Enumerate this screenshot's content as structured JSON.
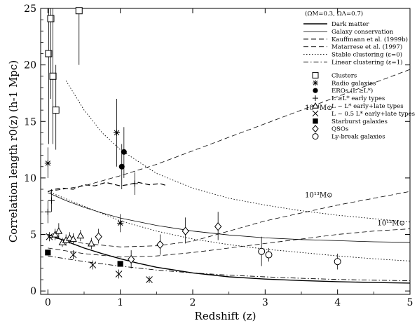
{
  "chart_data": {
    "type": "scatter",
    "xlabel": "Redshift (z)",
    "ylabel": "Correlation length r0(z) (h-1 Mpc)",
    "xlim": [
      -0.1,
      5
    ],
    "ylim": [
      -0.3,
      25
    ],
    "xticks": [
      "0",
      "1",
      "2",
      "3",
      "4",
      "5"
    ],
    "yticks": [
      "0",
      "5",
      "10",
      "15",
      "20",
      "25"
    ],
    "legend_header": "(ΩM=0.3, ΩΛ=0.7)",
    "legend_placement": "top-right",
    "line_series": [
      {
        "name": "Dark matter",
        "style": "solid",
        "width": 1.4,
        "x": [
          0,
          0.25,
          0.5,
          0.75,
          1,
          1.25,
          1.5,
          2,
          2.5,
          3,
          3.5,
          4,
          4.5,
          5
        ],
        "y": [
          5.0,
          4.4,
          3.8,
          3.3,
          2.85,
          2.45,
          2.1,
          1.6,
          1.25,
          1.05,
          0.92,
          0.82,
          0.75,
          0.7
        ]
      },
      {
        "name": "Galaxy conservation",
        "style": "solid",
        "width": 0.8,
        "x": [
          0,
          0.25,
          0.5,
          0.75,
          1,
          1.5,
          2,
          2.5,
          3,
          3.5,
          4,
          4.5,
          5
        ],
        "y": [
          8.7,
          8.0,
          7.4,
          6.9,
          6.45,
          5.8,
          5.3,
          4.95,
          4.7,
          4.55,
          4.45,
          4.35,
          4.3
        ]
      },
      {
        "name": "Kauffmann et al. (1999b)",
        "style": "dashed",
        "width": 1.2,
        "x": [
          0,
          0.1,
          0.2,
          0.35,
          0.5,
          0.65,
          0.8,
          1.0,
          1.1,
          1.25,
          1.4,
          1.55,
          1.65
        ],
        "y": [
          8.8,
          9.0,
          9.1,
          9.0,
          9.4,
          9.3,
          9.6,
          9.3,
          9.4,
          9.6,
          9.4,
          9.5,
          9.3
        ]
      },
      {
        "name": "Matarrese et al. (1997)",
        "style": "dashed",
        "width": 0.8,
        "x": [
          0,
          0.5,
          1,
          1.5,
          2,
          2.5,
          3,
          3.5,
          4,
          4.5,
          5
        ],
        "y": [
          8.8,
          9.3,
          10.2,
          11.2,
          12.4,
          13.6,
          14.8,
          16.0,
          17.2,
          18.4,
          19.6
        ]
      },
      {
        "name": "Matarrese et al. (1997)",
        "style": "dashed",
        "width": 0.8,
        "x": [
          0,
          0.5,
          1,
          1.5,
          2,
          2.5,
          3,
          3.5,
          4,
          4.5,
          5
        ],
        "y": [
          4.8,
          4.2,
          3.9,
          4.0,
          4.4,
          5.3,
          6.2,
          6.9,
          7.6,
          8.2,
          8.8
        ]
      },
      {
        "name": "Matarrese et al. (1997)",
        "style": "dashed",
        "width": 0.8,
        "x": [
          0,
          0.5,
          1,
          1.5,
          2,
          2.5,
          3,
          3.5,
          4,
          4.5,
          5
        ],
        "y": [
          3.8,
          3.3,
          3.0,
          3.1,
          3.4,
          3.8,
          4.2,
          4.6,
          5.0,
          5.3,
          5.5
        ]
      },
      {
        "name": "Stable clustering (ε=0)",
        "style": "dotted",
        "width": 0.9,
        "x": [
          0.25,
          0.5,
          0.75,
          1,
          1.5,
          2,
          2.5,
          3,
          3.5,
          4,
          4.5,
          5
        ],
        "y": [
          18.6,
          16.0,
          14.0,
          12.5,
          10.4,
          9.1,
          8.2,
          7.6,
          7.1,
          6.7,
          6.4,
          6.1
        ]
      },
      {
        "name": "Stable clustering (ε=0)",
        "style": "dotted",
        "width": 0.9,
        "x": [
          0,
          0.5,
          1,
          1.5,
          2,
          2.5,
          3,
          3.5,
          4,
          4.5,
          5
        ],
        "y": [
          8.8,
          7.5,
          6.2,
          5.3,
          4.6,
          4.1,
          3.7,
          3.4,
          3.1,
          2.85,
          2.65
        ]
      },
      {
        "name": "Linear clustering (ε=1)",
        "style": "dashdot",
        "width": 0.9,
        "x": [
          0,
          0.5,
          1,
          1.5,
          2,
          2.5,
          3,
          3.5,
          4,
          4.5,
          5
        ],
        "y": [
          3.1,
          2.6,
          2.2,
          1.85,
          1.6,
          1.4,
          1.25,
          1.12,
          1.02,
          0.95,
          0.9
        ]
      }
    ],
    "point_series": [
      {
        "name": "Clusters",
        "marker": "square-open",
        "points": [
          {
            "x": 0.01,
            "y": 21.0,
            "ylo": 13.0,
            "yhi": 27.0
          },
          {
            "x": 0.04,
            "y": 24.1,
            "ylo": 17.0,
            "yhi": 27.0
          },
          {
            "x": 0.07,
            "y": 19.0,
            "ylo": 13.0,
            "yhi": 25.0
          },
          {
            "x": 0.11,
            "y": 16.0,
            "ylo": 12.5,
            "yhi": 20.0
          },
          {
            "x": 0.43,
            "y": 24.8,
            "ylo": 20.0,
            "yhi": 27.0
          }
        ]
      },
      {
        "name": "Radio galaxies",
        "marker": "asterisk",
        "points": [
          {
            "x": 0.0,
            "y": 11.3,
            "ylo": 10.0,
            "yhi": 12.7
          },
          {
            "x": 0.95,
            "y": 14.0,
            "ylo": 11.0,
            "yhi": 17.0
          },
          {
            "x": 1.0,
            "y": 6.0,
            "ylo": 5.2,
            "yhi": 6.8
          }
        ]
      },
      {
        "name": "EROs (L ≥L*)",
        "marker": "circle-filled",
        "points": [
          {
            "x": 1.02,
            "y": 11.0,
            "ylo": 9.0,
            "yhi": 13.0
          },
          {
            "x": 1.05,
            "y": 12.3,
            "ylo": 10.0,
            "yhi": 14.5
          }
        ]
      },
      {
        "name": "L ≥L* early types",
        "marker": "plus",
        "points": [
          {
            "x": 0.0,
            "y": 7.0,
            "ylo": 6.0,
            "yhi": 8.0
          },
          {
            "x": 0.05,
            "y": 8.0,
            "ylo": 7.0,
            "yhi": 9.0
          },
          {
            "x": 1.2,
            "y": 9.5,
            "ylo": 8.5,
            "yhi": 10.5
          }
        ]
      },
      {
        "name": "L ~ L* early+late types",
        "marker": "triangle-open",
        "points": [
          {
            "x": 0.1,
            "y": 5.0,
            "ylo": 4.5,
            "yhi": 5.5
          },
          {
            "x": 0.15,
            "y": 5.3,
            "ylo": 4.6,
            "yhi": 6.0
          },
          {
            "x": 0.2,
            "y": 4.3,
            "ylo": 3.9,
            "yhi": 4.7
          },
          {
            "x": 0.25,
            "y": 4.5,
            "ylo": 4.0,
            "yhi": 5.0
          },
          {
            "x": 0.3,
            "y": 4.7,
            "ylo": 4.2,
            "yhi": 5.2
          },
          {
            "x": 0.35,
            "y": 4.6,
            "ylo": 4.1,
            "yhi": 5.1
          },
          {
            "x": 0.45,
            "y": 4.9,
            "ylo": 4.4,
            "yhi": 5.4
          },
          {
            "x": 0.6,
            "y": 4.2,
            "ylo": 3.7,
            "yhi": 4.7
          }
        ]
      },
      {
        "name": "L ~ 0.5 L* early+late types",
        "marker": "cross",
        "points": [
          {
            "x": 0.02,
            "y": 4.8,
            "ylo": 4.4,
            "yhi": 5.2
          },
          {
            "x": 0.35,
            "y": 3.2,
            "ylo": 2.8,
            "yhi": 3.6
          },
          {
            "x": 0.62,
            "y": 2.3,
            "ylo": 1.9,
            "yhi": 2.7
          },
          {
            "x": 0.98,
            "y": 1.5,
            "ylo": 1.1,
            "yhi": 1.9
          },
          {
            "x": 1.4,
            "y": 1.0,
            "ylo": 0.7,
            "yhi": 1.3
          }
        ]
      },
      {
        "name": "Starburst galaxies",
        "marker": "square-filled",
        "points": [
          {
            "x": 0.0,
            "y": 3.4,
            "ylo": 3.4,
            "yhi": 3.4
          },
          {
            "x": 1.0,
            "y": 2.4,
            "ylo": 2.4,
            "yhi": 2.4
          }
        ]
      },
      {
        "name": "QSOs",
        "marker": "diamond-open",
        "points": [
          {
            "x": 0.7,
            "y": 4.8,
            "ylo": 4.2,
            "yhi": 5.5
          },
          {
            "x": 1.15,
            "y": 2.8,
            "ylo": 2.0,
            "yhi": 3.6
          },
          {
            "x": 1.55,
            "y": 4.1,
            "ylo": 3.2,
            "yhi": 5.0
          },
          {
            "x": 1.9,
            "y": 5.3,
            "ylo": 4.2,
            "yhi": 6.5
          },
          {
            "x": 2.35,
            "y": 5.7,
            "ylo": 4.5,
            "yhi": 7.0
          }
        ]
      },
      {
        "name": "Ly-break galaxies",
        "marker": "circle-open",
        "points": [
          {
            "x": 2.95,
            "y": 3.5,
            "ylo": 2.2,
            "yhi": 4.8
          },
          {
            "x": 3.05,
            "y": 3.2,
            "ylo": 2.6,
            "yhi": 3.8
          },
          {
            "x": 4.0,
            "y": 2.6,
            "ylo": 1.9,
            "yhi": 3.3
          }
        ]
      }
    ],
    "annotations": [
      {
        "text": "10¹⁴M⊙",
        "x": 3.55,
        "y": 16.0
      },
      {
        "text": "10¹³M⊙",
        "x": 3.55,
        "y": 8.3
      },
      {
        "text": "10¹²M⊙",
        "x": 4.55,
        "y": 5.8
      }
    ],
    "legend": [
      {
        "label": "Dark matter",
        "kind": "line",
        "style": "solid",
        "width": 1.4
      },
      {
        "label": "Galaxy conservation",
        "kind": "line",
        "style": "solid",
        "width": 0.8
      },
      {
        "label": "Kauffmann et al. (1999b)",
        "kind": "line",
        "style": "dashed",
        "width": 1.2
      },
      {
        "label": "Matarrese et al. (1997)",
        "kind": "line",
        "style": "dashed",
        "width": 0.8
      },
      {
        "label": "Stable clustering (ε=0)",
        "kind": "line",
        "style": "dotted",
        "width": 0.9
      },
      {
        "label": "Linear clustering (ε=1)",
        "kind": "line",
        "style": "dashdot",
        "width": 0.9
      },
      {
        "label": "Clusters",
        "kind": "marker",
        "marker": "square-open"
      },
      {
        "label": "Radio galaxies",
        "kind": "marker",
        "marker": "asterisk"
      },
      {
        "label": "EROs (L ≥L*)",
        "kind": "marker",
        "marker": "circle-filled"
      },
      {
        "label": "L ≥L* early types",
        "kind": "marker",
        "marker": "plus"
      },
      {
        "label": "L ~ L* early+late types",
        "kind": "marker",
        "marker": "triangle-open"
      },
      {
        "label": "L ~ 0.5 L* early+late types",
        "kind": "marker",
        "marker": "cross"
      },
      {
        "label": "Starburst galaxies",
        "kind": "marker",
        "marker": "square-filled"
      },
      {
        "label": "QSOs",
        "kind": "marker",
        "marker": "diamond-open"
      },
      {
        "label": "Ly-break galaxies",
        "kind": "marker",
        "marker": "circle-open"
      }
    ]
  }
}
